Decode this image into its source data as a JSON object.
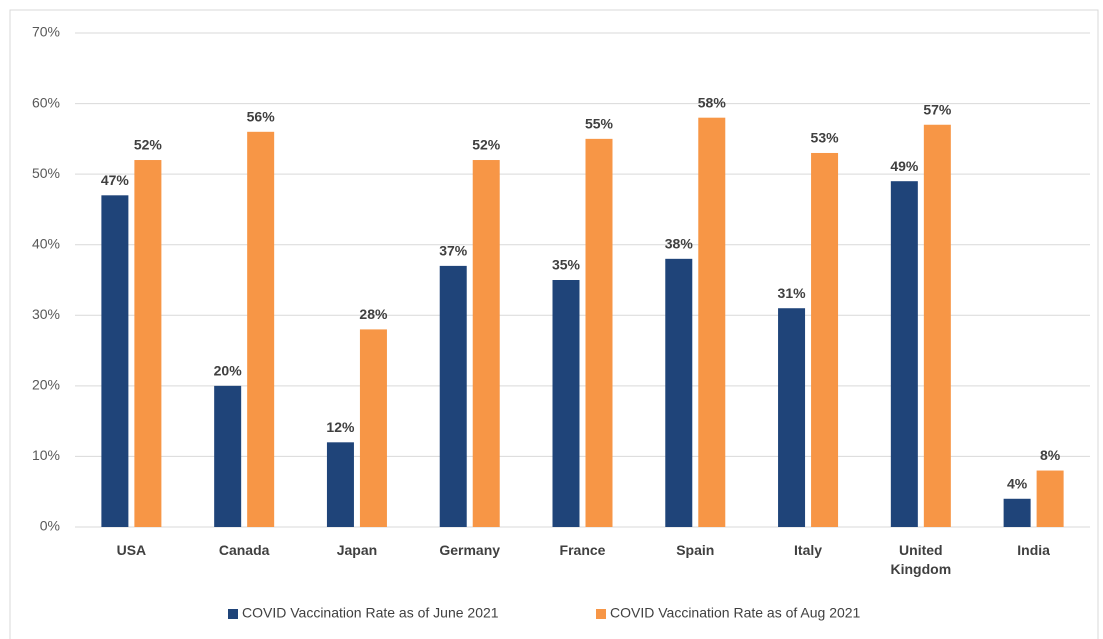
{
  "chart_data": {
    "type": "bar",
    "categories": [
      "USA",
      "Canada",
      "Japan",
      "Germany",
      "France",
      "Spain",
      "Italy",
      "United Kingdom",
      "India"
    ],
    "series": [
      {
        "name": "COVID Vaccination Rate as of June 2021",
        "color": "#1f4479",
        "values": [
          47,
          20,
          12,
          37,
          35,
          38,
          31,
          49,
          4
        ],
        "value_labels": [
          "47%",
          "20%",
          "12%",
          "37%",
          "35%",
          "38%",
          "31%",
          "49%",
          "4%"
        ]
      },
      {
        "name": "COVID Vaccination Rate as of Aug 2021",
        "color": "#f79646",
        "values": [
          52,
          56,
          28,
          52,
          55,
          58,
          53,
          57,
          8
        ],
        "value_labels": [
          "52%",
          "56%",
          "28%",
          "52%",
          "55%",
          "58%",
          "53%",
          "57%",
          "8%"
        ]
      }
    ],
    "ylim": [
      0,
      70
    ],
    "yticks": [
      {
        "value": 0,
        "label": "0%"
      },
      {
        "value": 10,
        "label": "10%"
      },
      {
        "value": 20,
        "label": "20%"
      },
      {
        "value": 30,
        "label": "30%"
      },
      {
        "value": 40,
        "label": "40%"
      },
      {
        "value": 50,
        "label": "50%"
      },
      {
        "value": 60,
        "label": "60%"
      },
      {
        "value": 70,
        "label": "70%"
      }
    ],
    "grid": true,
    "legend": "bottom"
  }
}
